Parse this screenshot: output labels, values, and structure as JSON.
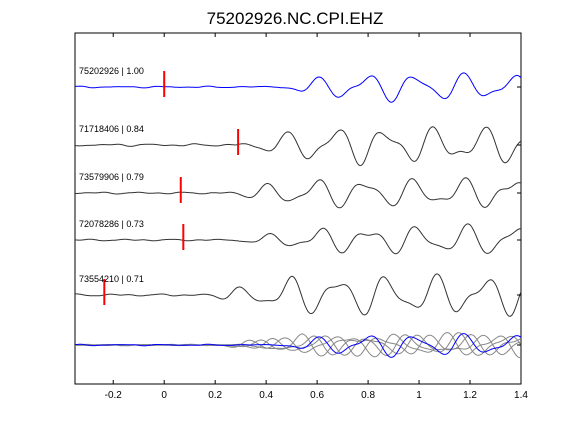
{
  "chart_data": {
    "type": "line",
    "title": "75202926.NC.CPI.EHZ",
    "xlabel": "",
    "ylabel": "",
    "xlim": [
      -0.35,
      1.4
    ],
    "xticks": [
      -0.2,
      0,
      0.2,
      0.4,
      0.6,
      0.8,
      1,
      1.2,
      1.4
    ],
    "xtick_labels": [
      "-0.2",
      "0",
      "0.2",
      "0.4",
      "0.6",
      "0.8",
      "1",
      "1.2",
      "1.4"
    ],
    "grid": false,
    "legend": "none",
    "colors": {
      "reference": "#0000ff",
      "correlated": "#333333",
      "overlay": "#888888",
      "pick": "#ff0000"
    },
    "series": [
      {
        "label": "75202926 | 1.00",
        "event_id": "75202926",
        "correlation": 1.0,
        "pick_time": 0.0,
        "color": "#0000ff"
      },
      {
        "label": "71718406 | 0.84",
        "event_id": "71718406",
        "correlation": 0.84,
        "pick_time": 0.29,
        "color": "#333333"
      },
      {
        "label": "73579906 | 0.79",
        "event_id": "73579906",
        "correlation": 0.79,
        "pick_time": 0.065,
        "color": "#333333"
      },
      {
        "label": "72078286 | 0.73",
        "event_id": "72078286",
        "correlation": 0.73,
        "pick_time": 0.075,
        "color": "#333333"
      },
      {
        "label": "73554210 | 0.71",
        "event_id": "73554210",
        "correlation": 0.71,
        "pick_time": -0.235,
        "color": "#333333"
      }
    ]
  }
}
